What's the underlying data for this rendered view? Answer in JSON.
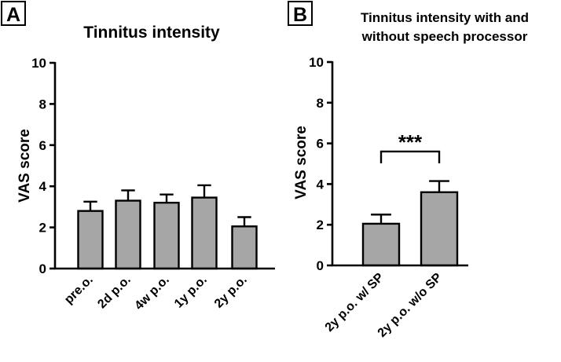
{
  "chart_data": [
    {
      "type": "bar",
      "panel_label": "A",
      "title": "Tinnitus intensity",
      "xlabel": "",
      "ylabel": "VAS score",
      "ylim": [
        0,
        10
      ],
      "yticks": [
        "0",
        "2",
        "4",
        "6",
        "8",
        "10"
      ],
      "categories": [
        "pre.o.",
        "2d p.o.",
        "4w p.o.",
        "1y p.o.",
        "2y p.o."
      ],
      "values": [
        2.8,
        3.3,
        3.2,
        3.45,
        2.05
      ],
      "errors": [
        0.45,
        0.5,
        0.4,
        0.6,
        0.45
      ]
    },
    {
      "type": "bar",
      "panel_label": "B",
      "title_lines": [
        "Tinnitus intensity with and",
        "without speech processor"
      ],
      "xlabel": "",
      "ylabel": "VAS score",
      "ylim": [
        0,
        10
      ],
      "yticks": [
        "0",
        "2",
        "4",
        "6",
        "8",
        "10"
      ],
      "categories": [
        "2y p.o. w/ SP",
        "2y p.o. w/o SP"
      ],
      "values": [
        2.05,
        3.6
      ],
      "errors": [
        0.45,
        0.55
      ],
      "significance": {
        "label": "***",
        "from": 0,
        "to": 1,
        "level": 5.6
      }
    }
  ]
}
